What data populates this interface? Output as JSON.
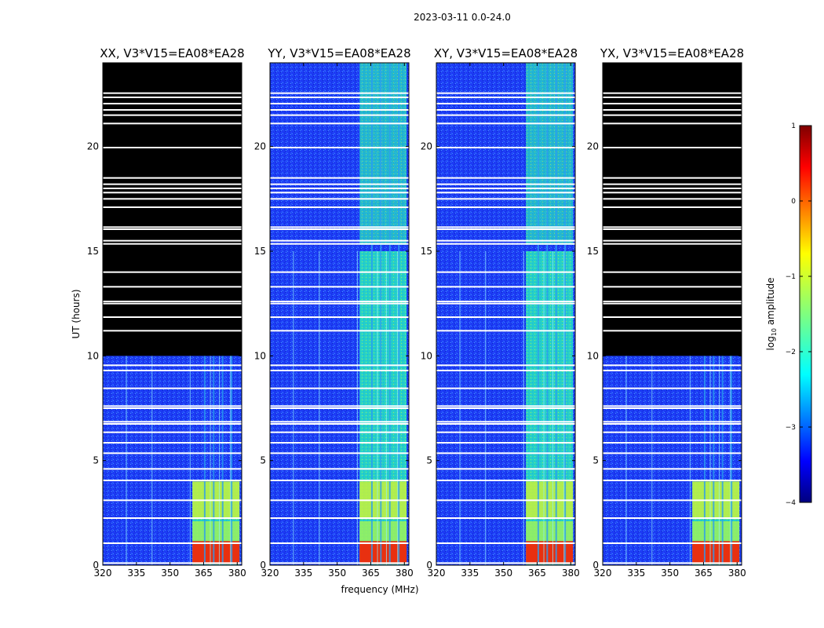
{
  "chart_data": {
    "type": "heatmap",
    "title": "2023-03-11 0.0-24.0",
    "xlabel": "frequency (MHz)",
    "ylabel": "UT (hours)",
    "xlim": [
      320,
      382
    ],
    "ylim": [
      0,
      24
    ],
    "x_ticks": [
      320,
      335,
      350,
      365,
      380
    ],
    "y_ticks": [
      0,
      5,
      10,
      15,
      20
    ],
    "colormap": "jet",
    "colorbar": {
      "label_prefix": "log",
      "label_sub": "10",
      "label_suffix": " amplitude",
      "range": [
        -4,
        1
      ],
      "ticks": [
        1,
        0,
        -1,
        -2,
        -3,
        -4
      ],
      "tick_labels": [
        "1",
        "0",
        "−1",
        "−2",
        "−3",
        "−4"
      ]
    },
    "panels": [
      {
        "name": "xx",
        "title": "XX, V3*V15=EA08*EA28",
        "masked_above_hours": 10.0
      },
      {
        "name": "yy",
        "title": "YY, V3*V15=EA08*EA28",
        "masked_above_hours": null
      },
      {
        "name": "xy",
        "title": "XY, V3*V15=EA08*EA28",
        "masked_above_hours": null
      },
      {
        "name": "yx",
        "title": "YX, V3*V15=EA08*EA28",
        "masked_above_hours": 10.0
      }
    ],
    "flagged_hours": [
      0.1,
      1.05,
      2.25,
      3.1,
      4.05,
      4.6,
      5.35,
      5.85,
      6.35,
      6.75,
      6.85,
      7.5,
      7.6,
      8.45,
      9.3,
      9.55,
      11.2,
      11.85,
      12.5,
      12.6,
      13.3,
      14.0,
      15.35,
      15.5,
      16.05,
      16.15,
      17.1,
      17.5,
      17.8,
      18.0,
      18.2,
      18.5,
      19.95,
      21.1,
      21.5,
      21.75,
      22.05,
      22.35,
      22.55
    ],
    "rfi_channels_mhz": [
      330.5,
      342,
      359,
      368,
      372,
      377
    ],
    "strong_band_mhz": [
      360,
      381
    ],
    "strong_band_end_hours": 4.0,
    "saturated_band_end_hours": 1.15
  }
}
